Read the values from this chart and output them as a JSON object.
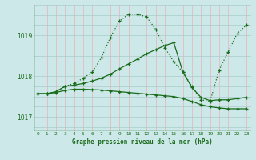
{
  "title": "Graphe pression niveau de la mer (hPa)",
  "background_color": "#cce8e8",
  "line_color": "#1a6b1a",
  "xlim": [
    -0.5,
    23.5
  ],
  "ylim": [
    1016.65,
    1019.75
  ],
  "yticks": [
    1017,
    1018,
    1019
  ],
  "xticks": [
    0,
    1,
    2,
    3,
    4,
    5,
    6,
    7,
    8,
    9,
    10,
    11,
    12,
    13,
    14,
    15,
    16,
    17,
    18,
    19,
    20,
    21,
    22,
    23
  ],
  "line1_x": [
    0,
    1,
    2,
    3,
    4,
    5,
    6,
    7,
    8,
    9,
    10,
    11,
    12,
    13,
    14,
    15,
    16,
    17,
    18,
    19,
    20,
    21,
    22,
    23
  ],
  "line1_y": [
    1017.57,
    1017.57,
    1017.62,
    1017.75,
    1017.82,
    1017.95,
    1018.1,
    1018.45,
    1018.95,
    1019.35,
    1019.52,
    1019.52,
    1019.45,
    1019.15,
    1018.7,
    1018.35,
    1018.1,
    1017.75,
    1017.42,
    1017.38,
    1018.15,
    1018.6,
    1019.05,
    1019.25
  ],
  "line2_x": [
    0,
    1,
    2,
    3,
    4,
    5,
    6,
    7,
    8,
    9,
    10,
    11,
    12,
    13,
    14,
    15,
    16,
    17,
    18,
    19,
    20,
    21,
    22,
    23
  ],
  "line2_y": [
    1017.57,
    1017.57,
    1017.62,
    1017.75,
    1017.78,
    1017.82,
    1017.88,
    1017.95,
    1018.05,
    1018.18,
    1018.3,
    1018.42,
    1018.55,
    1018.65,
    1018.75,
    1018.82,
    1018.1,
    1017.72,
    1017.48,
    1017.4,
    1017.42,
    1017.42,
    1017.45,
    1017.48
  ],
  "line3_x": [
    0,
    1,
    2,
    3,
    4,
    5,
    6,
    7,
    8,
    9,
    10,
    11,
    12,
    13,
    14,
    15,
    16,
    17,
    18,
    19,
    20,
    21,
    22,
    23
  ],
  "line3_y": [
    1017.57,
    1017.57,
    1017.6,
    1017.65,
    1017.68,
    1017.68,
    1017.67,
    1017.66,
    1017.64,
    1017.62,
    1017.6,
    1017.58,
    1017.56,
    1017.54,
    1017.52,
    1017.5,
    1017.45,
    1017.38,
    1017.3,
    1017.25,
    1017.22,
    1017.2,
    1017.2,
    1017.2
  ]
}
